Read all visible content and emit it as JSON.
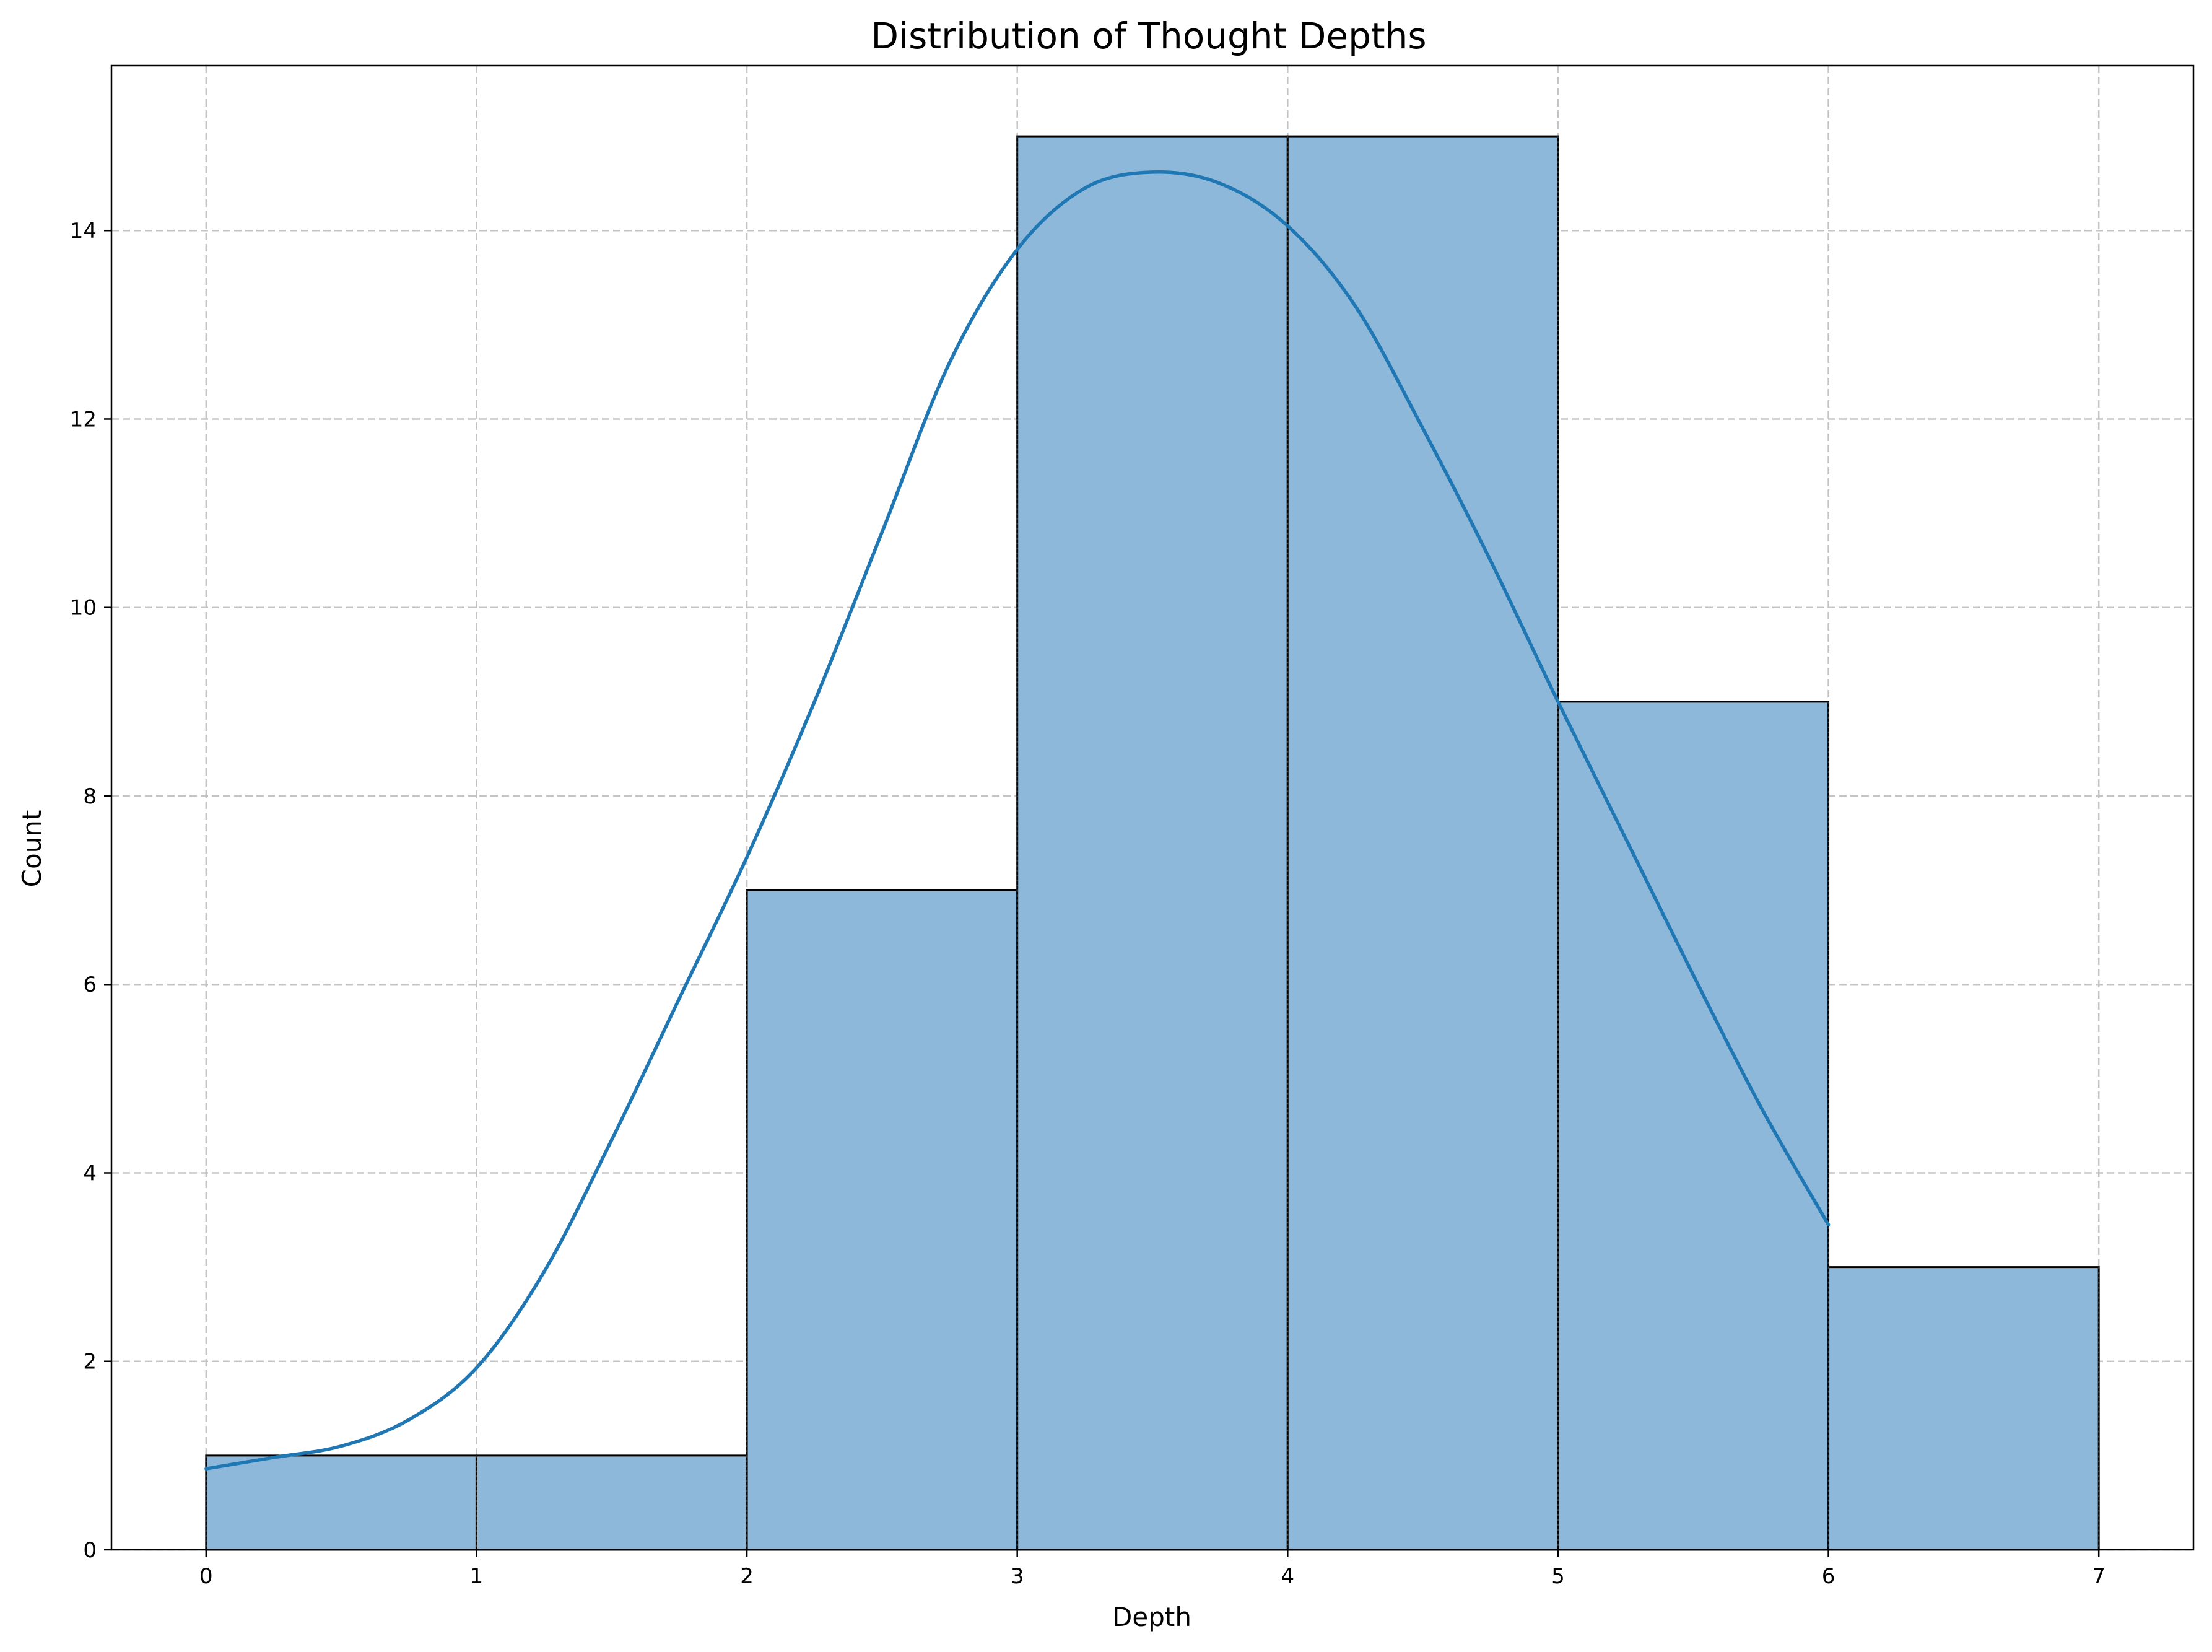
{
  "chart_data": {
    "type": "bar",
    "title": "Distribution of Thought Depths",
    "xlabel": "Depth",
    "ylabel": "Count",
    "bins": [
      {
        "start": 0,
        "end": 1,
        "count": 1
      },
      {
        "start": 1,
        "end": 2,
        "count": 1
      },
      {
        "start": 2,
        "end": 3,
        "count": 7
      },
      {
        "start": 3,
        "end": 4,
        "count": 15
      },
      {
        "start": 4,
        "end": 5,
        "count": 15
      },
      {
        "start": 5,
        "end": 6,
        "count": 9
      },
      {
        "start": 6,
        "end": 7,
        "count": 3
      }
    ],
    "kde": {
      "x": [
        0,
        0.25,
        0.5,
        0.75,
        1,
        1.25,
        1.5,
        1.75,
        2,
        2.25,
        2.5,
        2.75,
        3,
        3.25,
        3.5,
        3.75,
        4,
        4.25,
        4.5,
        4.75,
        5,
        5.25,
        5.5,
        5.75,
        6
      ],
      "y": [
        0.86,
        0.98,
        1.1,
        1.38,
        1.93,
        2.95,
        4.35,
        5.85,
        7.35,
        9.0,
        10.8,
        12.6,
        13.8,
        14.45,
        14.62,
        14.5,
        14.05,
        13.2,
        11.9,
        10.5,
        9.0,
        7.55,
        6.1,
        4.7,
        3.45
      ]
    },
    "xticks": [
      "0",
      "1",
      "2",
      "3",
      "4",
      "5",
      "6",
      "7"
    ],
    "yticks": [
      "0",
      "2",
      "4",
      "6",
      "8",
      "10",
      "12",
      "14"
    ],
    "xlim": [
      -0.35,
      7.35
    ],
    "ylim": [
      0,
      15.75
    ],
    "grid": true,
    "colors": {
      "bar_fill": "#8db8d9",
      "bar_edge": "#000000",
      "kde_line": "#1f77b4",
      "grid": "#c4c4c4"
    }
  }
}
